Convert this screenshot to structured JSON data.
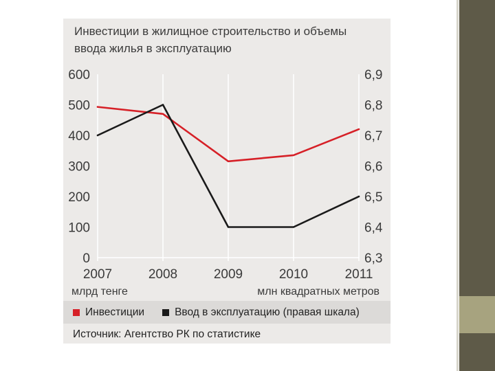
{
  "chart_data": {
    "type": "line",
    "title": "Инвестиции в жилищное строительство и объемы ввода жилья в эксплуатацию",
    "x": [
      "2007",
      "2008",
      "2009",
      "2010",
      "2011"
    ],
    "xlabel": "",
    "left_axis_unit": "млрд тенге",
    "right_axis_unit": "млн квадратных метров",
    "left_ylim": [
      0,
      600
    ],
    "left_ticks": [
      "0",
      "100",
      "200",
      "300",
      "400",
      "500",
      "600"
    ],
    "right_ylim": [
      6.3,
      6.9
    ],
    "right_ticks": [
      "6,3",
      "6,4",
      "6,5",
      "6,6",
      "6,7",
      "6,8",
      "6,9"
    ],
    "grid": "vertical",
    "series": [
      {
        "name": "Инвестиции",
        "axis": "left",
        "color": "#d62027",
        "values": [
          493,
          470,
          315,
          335,
          420
        ]
      },
      {
        "name": "Ввод в эксплуатацию (правая шкала)",
        "axis": "right",
        "color": "#1a1a1a",
        "values": [
          6.7,
          6.8,
          6.4,
          6.4,
          6.5
        ]
      }
    ],
    "source": "Источник: Агентство РК по статистике"
  }
}
